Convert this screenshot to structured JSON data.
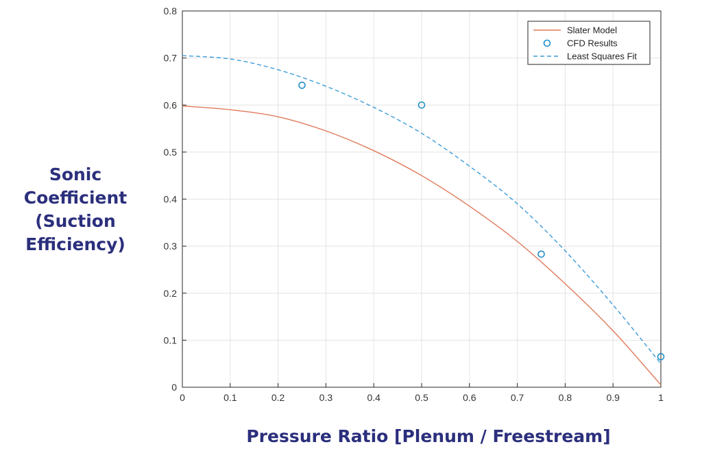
{
  "chart_data": {
    "type": "line",
    "xlabel": "Pressure Ratio [Plenum / Freestream]",
    "ylabel_lines": [
      "Sonic",
      "Coefficient",
      "(Suction",
      "Efficiency)"
    ],
    "xlim": [
      0,
      1
    ],
    "ylim": [
      0,
      0.8
    ],
    "x_ticks": [
      0,
      0.1,
      0.2,
      0.3,
      0.4,
      0.5,
      0.6,
      0.7,
      0.8,
      0.9,
      1
    ],
    "x_tick_labels": [
      "0",
      "0.1",
      "0.2",
      "0.3",
      "0.4",
      "0.5",
      "0.6",
      "0.7",
      "0.8",
      "0.9",
      "1"
    ],
    "y_ticks": [
      0,
      0.1,
      0.2,
      0.3,
      0.4,
      0.5,
      0.6,
      0.7,
      0.8
    ],
    "y_tick_labels": [
      "0",
      "0.1",
      "0.2",
      "0.3",
      "0.4",
      "0.5",
      "0.6",
      "0.7",
      "0.8"
    ],
    "grid": true,
    "legend_position": "top-right",
    "series": [
      {
        "name": "Slater Model",
        "style": "solid",
        "color": "#e07a5a",
        "x": [
          0,
          0.1,
          0.2,
          0.3,
          0.4,
          0.5,
          0.6,
          0.7,
          0.8,
          0.9,
          1.0
        ],
        "y": [
          0.598,
          0.59,
          0.575,
          0.545,
          0.503,
          0.45,
          0.385,
          0.31,
          0.22,
          0.12,
          0.005
        ]
      },
      {
        "name": "CFD Results",
        "style": "markers",
        "color": "#1f8fc9",
        "x": [
          0.25,
          0.5,
          0.75,
          1.0
        ],
        "y": [
          0.642,
          0.6,
          0.283,
          0.065
        ]
      },
      {
        "name": "Least Squares Fit",
        "style": "dashed",
        "color": "#3a9ad9",
        "x": [
          0,
          0.1,
          0.2,
          0.3,
          0.4,
          0.5,
          0.6,
          0.7,
          0.8,
          0.9,
          1.0
        ],
        "y": [
          0.705,
          0.698,
          0.675,
          0.64,
          0.595,
          0.54,
          0.47,
          0.39,
          0.29,
          0.175,
          0.05
        ]
      }
    ]
  }
}
